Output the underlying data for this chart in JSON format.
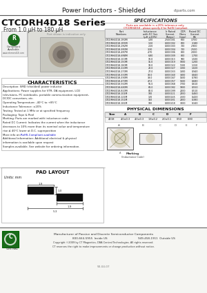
{
  "white": "#ffffff",
  "black": "#000000",
  "light_bg": "#f2f2ef",
  "dark_gray": "#333333",
  "mid_gray": "#666666",
  "light_gray": "#cccccc",
  "green_dark": "#1a6b1a",
  "red": "#cc0000",
  "blue_link": "#0000cc",
  "header_title": "Power Inductors - Shielded",
  "header_url": "ctparts.com",
  "series_title": "CTCDRH4D18 Series",
  "series_range": "From 1.0 μH to 180 μH",
  "spec_title": "SPECIFICATIONS",
  "spec_note1": "Parts are available in ±20% tolerance only.",
  "spec_note2": "CTCDRH4D18 - please specify if for RoHS Compliant",
  "char_title": "CHARACTERISTICS",
  "phys_title": "PHYSICAL DIMENSIONS",
  "pad_title": "PAD LAYOUT",
  "pad_unit": "Units: mm",
  "footer_mfg": "Manufacturer of Passive and Discrete Semiconductor Components",
  "footer_tel1": "800-664-5955  Inside US",
  "footer_tel2": "949-458-1911  Outside US",
  "footer_copy": "Copyright ©2009 by CT Magnetics, DBA Central Technologies. All rights reserved.",
  "footer_note": "CT reserves the right to make improvements or change production without notice.",
  "footer_docnum": "50-04-07",
  "spec_rows": [
    [
      "CTCDRH4D18-",
      "1R0M",
      "1.00",
      "2.500001",
      "600",
      "3.700"
    ],
    [
      "CTCDRH4D18-",
      "1R5M",
      "1.50",
      "0.000002",
      "600",
      "3.180"
    ],
    [
      "CTCDRH4D18-",
      "2R2M",
      "2.20",
      "0.000003",
      "700",
      "2.900"
    ],
    [
      "CTCDRH4D18-",
      "3R3M",
      "3.30",
      "0.000004",
      "700",
      "2.500"
    ],
    [
      "CTCDRH4D18-",
      "4R7M",
      "4.70",
      "0.000006",
      "800",
      "2.000"
    ],
    [
      "CTCDRH4D18-",
      "6R8M",
      "6.80",
      "0.000009",
      "800",
      "1.700"
    ],
    [
      "CTCDRH4D18-",
      "100M",
      "10.0",
      "0.000013",
      "900",
      "1.500"
    ],
    [
      "CTCDRH4D18-",
      "150M",
      "15.0",
      "0.000019",
      "1000",
      "1.200"
    ],
    [
      "CTCDRH4D18-",
      "180M",
      "18.0",
      "0.000022",
      "1100",
      "1.150"
    ],
    [
      "CTCDRH4D18-",
      "220M",
      "22.0",
      "0.000027",
      "1200",
      "1.020"
    ],
    [
      "CTCDRH4D18-",
      "270M",
      "27.0",
      "0.000033",
      "1300",
      "0.940"
    ],
    [
      "CTCDRH4D18-",
      "330M",
      "33.0",
      "0.000040",
      "1400",
      "0.840"
    ],
    [
      "CTCDRH4D18-",
      "390M",
      "39.0",
      "0.000047",
      "1500",
      "0.780"
    ],
    [
      "CTCDRH4D18-",
      "470M",
      "47.0",
      "0.000057",
      "1600",
      "0.680"
    ],
    [
      "CTCDRH4D18-",
      "560M",
      "56.0",
      "0.000068",
      "1700",
      "0.610"
    ],
    [
      "CTCDRH4D18-",
      "680M",
      "68.0",
      "0.000082",
      "1800",
      "0.550"
    ],
    [
      "CTCDRH4D18-",
      "820M",
      "82.0",
      "0.000099",
      "2000",
      "0.510"
    ],
    [
      "CTCDRH4D18-",
      "101M",
      "100",
      "0.000121",
      "2200",
      "0.460"
    ],
    [
      "CTCDRH4D18-",
      "121M",
      "120",
      "0.000145",
      "2500",
      "0.420"
    ],
    [
      "CTCDRH4D18-",
      "151M",
      "150",
      "0.000181",
      "2800",
      "0.380"
    ],
    [
      "CTCDRH4D18-",
      "181M",
      "180",
      "0.000218",
      "3000",
      "0.340"
    ]
  ]
}
